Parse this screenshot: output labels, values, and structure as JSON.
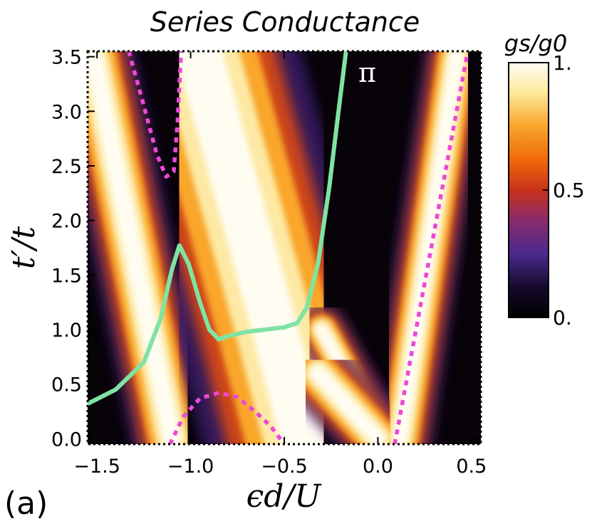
{
  "chart_data": {
    "type": "heatmap",
    "title": "Series Conductance",
    "xlabel": "ϵd/U",
    "ylabel": "t′/t",
    "xlim": [
      -1.55,
      0.55
    ],
    "ylim": [
      -0.05,
      3.55
    ],
    "xticks": [
      -1.5,
      -1.0,
      -0.5,
      0.0,
      0.5
    ],
    "xtick_labels": [
      "−1.5",
      "−1.0",
      "−0.5",
      "0.0",
      "0.5"
    ],
    "yticks": [
      0.0,
      0.5,
      1.0,
      1.5,
      2.0,
      2.5,
      3.0,
      3.5
    ],
    "ytick_labels": [
      "0.0",
      "0.5",
      "1.0",
      "1.5",
      "2.0",
      "2.5",
      "3.0",
      "3.5"
    ],
    "colorbar": {
      "title": "gs/g0",
      "min": 0,
      "max": 1,
      "ticks": [
        0,
        0.5,
        1
      ],
      "tick_labels": [
        "0.",
        "0.5",
        "1."
      ],
      "colors": [
        "#000000",
        "#170a2c",
        "#4a2a8c",
        "#8a2b6e",
        "#c8311a",
        "#f06a0a",
        "#f8a52a",
        "#fde79a",
        "#fffcf2"
      ]
    },
    "bright_bands": [
      {
        "name": "left-diagonal-band",
        "points": [
          [
            -1.52,
            3.5
          ],
          [
            -1.1,
            0.0
          ]
        ]
      },
      {
        "name": "central-wide-band",
        "points": [
          [
            -0.95,
            3.5
          ],
          [
            -0.55,
            1.0
          ],
          [
            -0.4,
            0.0
          ]
        ]
      },
      {
        "name": "inner-right-band",
        "points": [
          [
            -0.3,
            1.0
          ],
          [
            0.02,
            0.0
          ]
        ]
      },
      {
        "name": "right-diagonal-band",
        "points": [
          [
            0.12,
            0.0
          ],
          [
            0.42,
            3.5
          ]
        ]
      },
      {
        "name": "lower-right-region",
        "points": [
          [
            -0.32,
            0.6
          ],
          [
            0.0,
            0.0
          ]
        ]
      }
    ],
    "curves": [
      {
        "name": "pi-phase-boundary",
        "label": "π",
        "color": "#7fe3a3",
        "style": "solid",
        "points": [
          [
            -1.55,
            0.32
          ],
          [
            -1.4,
            0.45
          ],
          [
            -1.25,
            0.7
          ],
          [
            -1.16,
            1.1
          ],
          [
            -1.1,
            1.55
          ],
          [
            -1.06,
            1.77
          ],
          [
            -1.01,
            1.6
          ],
          [
            -0.95,
            1.25
          ],
          [
            -0.9,
            1.0
          ],
          [
            -0.85,
            0.91
          ],
          [
            -0.8,
            0.94
          ],
          [
            -0.7,
            0.98
          ],
          [
            -0.6,
            1.0
          ],
          [
            -0.5,
            1.02
          ],
          [
            -0.43,
            1.06
          ],
          [
            -0.38,
            1.2
          ],
          [
            -0.32,
            1.6
          ],
          [
            -0.26,
            2.3
          ],
          [
            -0.21,
            3.0
          ],
          [
            -0.17,
            3.55
          ]
        ]
      },
      {
        "name": "upper-left-dotted",
        "color": "#ec48d8",
        "style": "dotted",
        "points": [
          [
            -1.33,
            3.55
          ],
          [
            -1.25,
            3.05
          ],
          [
            -1.18,
            2.6
          ],
          [
            -1.13,
            2.4
          ],
          [
            -1.09,
            2.45
          ],
          [
            -1.07,
            2.9
          ],
          [
            -1.05,
            3.55
          ]
        ]
      },
      {
        "name": "bottom-dotted-arc",
        "color": "#ec48d8",
        "style": "dotted",
        "points": [
          [
            -1.11,
            -0.05
          ],
          [
            -1.04,
            0.2
          ],
          [
            -0.95,
            0.37
          ],
          [
            -0.85,
            0.42
          ],
          [
            -0.75,
            0.38
          ],
          [
            -0.65,
            0.24
          ],
          [
            -0.57,
            0.11
          ],
          [
            -0.5,
            -0.05
          ]
        ]
      },
      {
        "name": "right-dotted-line",
        "color": "#ec48d8",
        "style": "dotted",
        "points": [
          [
            0.09,
            -0.05
          ],
          [
            0.48,
            3.55
          ]
        ]
      }
    ],
    "panel_label": "(a)"
  }
}
